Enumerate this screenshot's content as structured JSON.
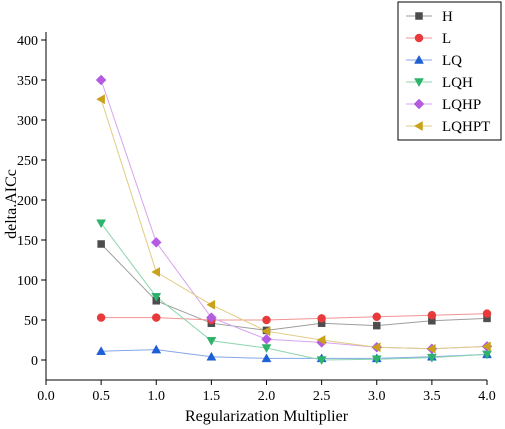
{
  "chart_data": {
    "type": "line",
    "xlabel": "Regularization Multiplier",
    "ylabel": "delta.AICc",
    "xlim": [
      0.0,
      4.0
    ],
    "ylim": [
      -25,
      410
    ],
    "x_ticks": [
      "0.0",
      "0.5",
      "1.0",
      "1.5",
      "2.0",
      "2.5",
      "3.0",
      "3.5",
      "4.0"
    ],
    "y_ticks": [
      "0",
      "50",
      "100",
      "150",
      "200",
      "250",
      "300",
      "350",
      "400"
    ],
    "x": [
      0.5,
      1.0,
      1.5,
      2.0,
      2.5,
      3.0,
      3.5,
      4.0
    ],
    "legend_position": "top-right",
    "grid": false,
    "series": [
      {
        "name": "H",
        "marker": "square",
        "color": "#4d4d4d",
        "values": [
          145,
          74,
          46,
          37,
          46,
          43,
          49,
          52
        ]
      },
      {
        "name": "L",
        "marker": "circle",
        "color": "#e83a3a",
        "values": [
          53,
          53,
          50,
          50,
          52,
          54,
          56,
          58
        ]
      },
      {
        "name": "LQ",
        "marker": "triangle-up",
        "color": "#1f5fd6",
        "values": [
          11,
          13,
          4,
          2,
          2,
          2,
          4,
          7
        ]
      },
      {
        "name": "LQH",
        "marker": "triangle-down",
        "color": "#2db36a",
        "values": [
          171,
          79,
          24,
          15,
          0,
          1,
          3,
          7
        ]
      },
      {
        "name": "LQHP",
        "marker": "diamond",
        "color": "#b45be0",
        "values": [
          350,
          147,
          53,
          26,
          22,
          16,
          14,
          17
        ]
      },
      {
        "name": "LQHPT",
        "marker": "triangle-left",
        "color": "#c9a21a",
        "values": [
          326,
          110,
          69,
          36,
          25,
          16,
          14,
          17
        ]
      }
    ]
  }
}
